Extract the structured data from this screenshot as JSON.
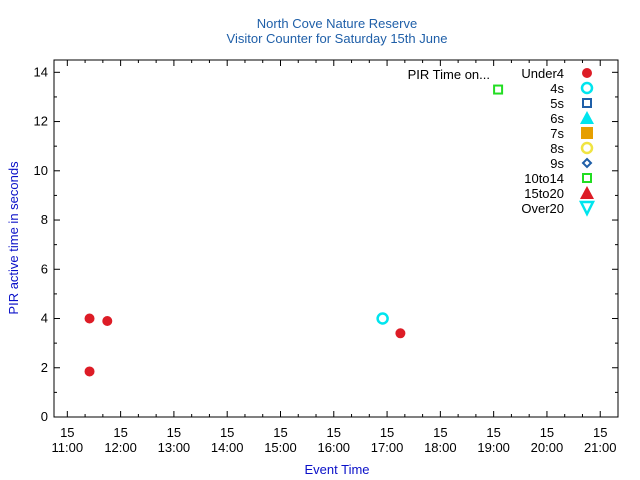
{
  "chart_data": {
    "type": "scatter",
    "title": "North Cove Nature Reserve",
    "subtitle": "Visitor Counter for Saturday 15th June",
    "xlabel": "Event Time",
    "ylabel": "PIR active time in seconds",
    "xlim": [
      "15 10:45",
      "15 21:20"
    ],
    "ylim": [
      0,
      14.5
    ],
    "x_ticks": [
      {
        "day": "15",
        "time": "11:00",
        "value": 11
      },
      {
        "day": "15",
        "time": "12:00",
        "value": 12
      },
      {
        "day": "15",
        "time": "13:00",
        "value": 13
      },
      {
        "day": "15",
        "time": "14:00",
        "value": 14
      },
      {
        "day": "15",
        "time": "15:00",
        "value": 15
      },
      {
        "day": "15",
        "time": "16:00",
        "value": 16
      },
      {
        "day": "15",
        "time": "17:00",
        "value": 17
      },
      {
        "day": "15",
        "time": "18:00",
        "value": 18
      },
      {
        "day": "15",
        "time": "19:00",
        "value": 19
      },
      {
        "day": "15",
        "time": "20:00",
        "value": 20
      },
      {
        "day": "15",
        "time": "21:00",
        "value": 21
      }
    ],
    "y_ticks": [
      0,
      2,
      4,
      6,
      8,
      10,
      12,
      14
    ],
    "legend_title": "PIR Time on...",
    "legend_position": "top-right",
    "grid": false,
    "series": [
      {
        "name": "Under4",
        "marker": "circle",
        "color": "#dd1c26",
        "points": [
          {
            "x": "15 11:25",
            "y": 4.0
          },
          {
            "x": "15 11:25",
            "y": 1.85
          },
          {
            "x": "15 11:45",
            "y": 3.9
          },
          {
            "x": "15 17:15",
            "y": 3.4
          }
        ]
      },
      {
        "name": "4s",
        "marker": "circle-open",
        "color": "#00e5ee",
        "points": [
          {
            "x": "15 16:55",
            "y": 4.0
          }
        ]
      },
      {
        "name": "5s",
        "marker": "square-open",
        "color": "#1f5fa8",
        "points": []
      },
      {
        "name": "6s",
        "marker": "triangle",
        "color": "#00e5ee",
        "points": []
      },
      {
        "name": "7s",
        "marker": "square",
        "color": "#e69f00",
        "points": []
      },
      {
        "name": "8s",
        "marker": "circle-open",
        "color": "#f0e442",
        "points": []
      },
      {
        "name": "9s",
        "marker": "diamond-open",
        "color": "#1f5fa8",
        "points": []
      },
      {
        "name": "10to14",
        "marker": "square-open",
        "color": "#22dd22",
        "points": [
          {
            "x": "15 19:05",
            "y": 13.3
          }
        ]
      },
      {
        "name": "15to20",
        "marker": "triangle",
        "color": "#dd1c26",
        "points": []
      },
      {
        "name": "Over20",
        "marker": "triangle-down-open",
        "color": "#00e5ee",
        "points": []
      }
    ]
  }
}
